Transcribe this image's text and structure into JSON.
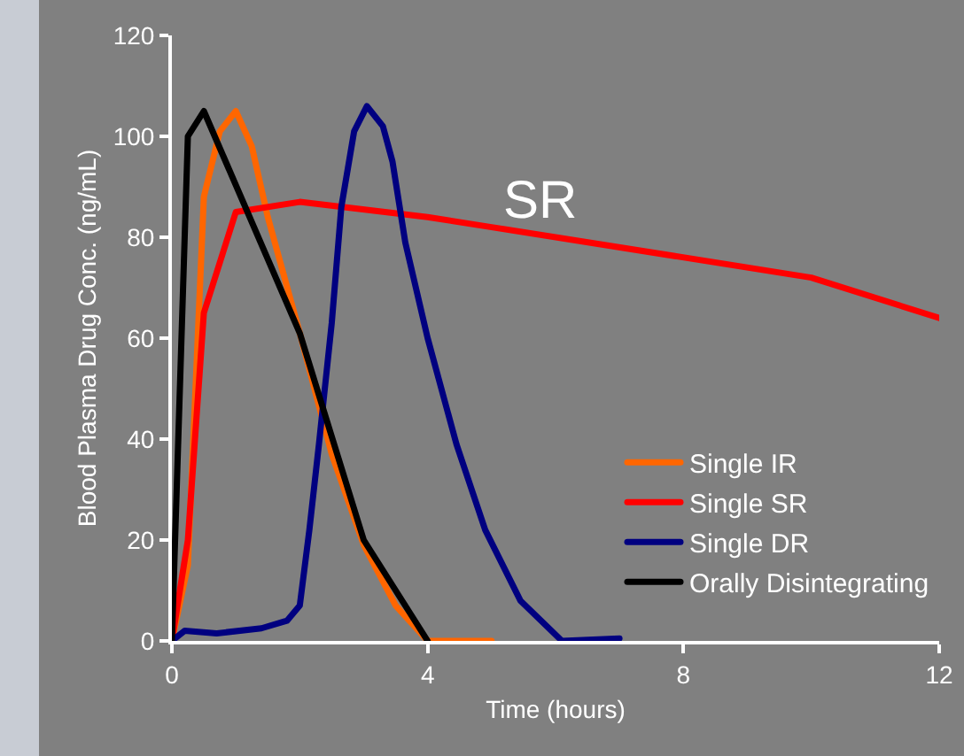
{
  "chart_data": {
    "type": "line",
    "xlabel": "Time (hours)",
    "ylabel": "Blood Plasma Drug Conc. (ng/mL)",
    "annotations": [
      "SR"
    ],
    "xlim": [
      0,
      12
    ],
    "xticks": [
      0,
      4,
      8,
      12
    ],
    "ylim": [
      0,
      120
    ],
    "yticks": [
      0,
      20,
      40,
      60,
      80,
      100,
      120
    ],
    "grid": false,
    "legend": "bottom right",
    "marker": "none",
    "line_style": "solid",
    "series": [
      {
        "name": "Single IR",
        "color": "#ff6600",
        "x": [
          0,
          0.25,
          0.5,
          0.75,
          1,
          1.25,
          1.5,
          2,
          2.5,
          3,
          3.5,
          4,
          5
        ],
        "values": [
          0,
          15,
          88,
          101,
          105,
          98,
          84,
          61,
          37,
          19,
          7,
          0,
          0
        ]
      },
      {
        "name": "Single SR",
        "color": "#ff0000",
        "x": [
          0,
          0.25,
          0.5,
          1,
          2,
          4,
          5,
          10,
          12
        ],
        "values": [
          0,
          20,
          65,
          85,
          87,
          84,
          82,
          72,
          64
        ]
      },
      {
        "name": "Single DR",
        "color": "#000080",
        "x": [
          0,
          0.2,
          0.7,
          1.4,
          1.8,
          2,
          2.15,
          2.3,
          2.5,
          2.65,
          2.85,
          3.05,
          3.3,
          3.45,
          3.65,
          4,
          4.45,
          4.9,
          5.45,
          6.1,
          7
        ],
        "values": [
          0,
          2,
          1.5,
          2.5,
          4,
          7,
          22,
          39,
          63,
          86,
          101,
          106,
          102,
          95,
          79,
          60,
          39,
          22,
          8,
          0,
          0.5
        ]
      },
      {
        "name": "Orally Disintegrating",
        "color": "#000000",
        "x": [
          0,
          0.25,
          0.5,
          2,
          3,
          4
        ],
        "values": [
          0,
          100,
          105,
          61,
          20,
          0
        ]
      }
    ]
  }
}
